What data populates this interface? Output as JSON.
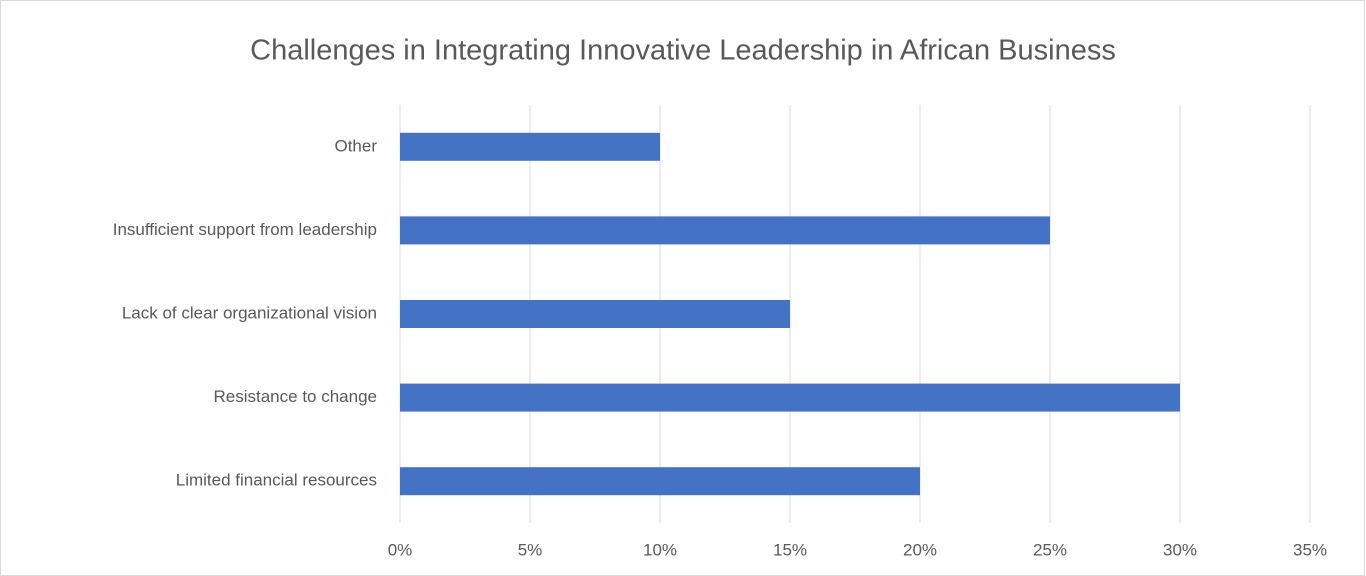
{
  "chart_data": {
    "type": "bar",
    "orientation": "horizontal",
    "title": "Challenges in Integrating Innovative Leadership in African Business",
    "categories": [
      "Limited financial resources",
      "Resistance to change",
      "Lack of clear organizational vision",
      "Insufficient support from leadership",
      "Other"
    ],
    "values": [
      20,
      30,
      15,
      25,
      10
    ],
    "color": "#4472c4",
    "xlim": [
      0,
      35
    ],
    "xticks": [
      {
        "value": 0,
        "label": "0%"
      },
      {
        "value": 5,
        "label": "5%"
      },
      {
        "value": 10,
        "label": "10%"
      },
      {
        "value": 15,
        "label": "15%"
      },
      {
        "value": 20,
        "label": "20%"
      },
      {
        "value": 25,
        "label": "25%"
      },
      {
        "value": 30,
        "label": "30%"
      },
      {
        "value": 35,
        "label": "35%"
      }
    ],
    "grid": true
  }
}
